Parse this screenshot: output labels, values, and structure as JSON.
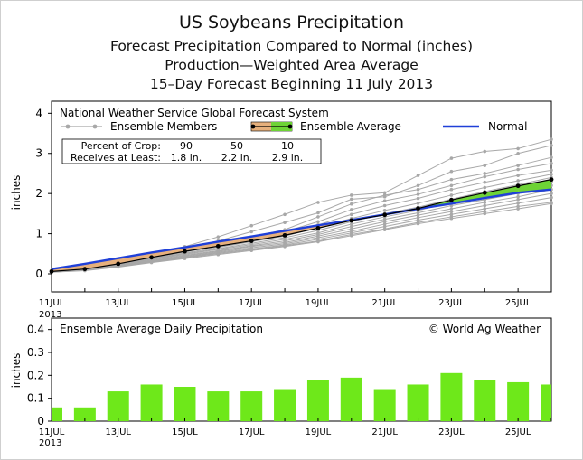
{
  "titles": [
    "US Soybeans Precipitation",
    "Forecast Precipitation Compared to Normal (inches)",
    "Production—Weighted Area Average",
    "15–Day Forecast Beginning 11 July 2013"
  ],
  "colors": {
    "normal": "#2040d8",
    "ensemble_avg_line": "#000000",
    "above_normal_fill": "#6ed336",
    "below_normal_fill": "#e6b07c",
    "members": "#a8a8a8",
    "bars": "#6ee81a"
  },
  "chart_data": [
    {
      "type": "line",
      "title": "National Weather Service Global Forecast System",
      "ylabel": "inches",
      "xlabel": "",
      "ylim": [
        -0.45,
        4.3
      ],
      "xlim": [
        "2013-07-11",
        "2013-07-26"
      ],
      "yticks": [
        0,
        1,
        2,
        3,
        4
      ],
      "xtick_labels": [
        "11JUL",
        "13JUL",
        "15JUL",
        "17JUL",
        "19JUL",
        "21JUL",
        "23JUL",
        "25JUL"
      ],
      "xtick_year_label": "2013",
      "x": [
        "2013-07-11",
        "2013-07-12",
        "2013-07-13",
        "2013-07-14",
        "2013-07-15",
        "2013-07-16",
        "2013-07-17",
        "2013-07-18",
        "2013-07-19",
        "2013-07-20",
        "2013-07-21",
        "2013-07-22",
        "2013-07-23",
        "2013-07-24",
        "2013-07-25",
        "2013-07-26"
      ],
      "legend": {
        "members_label": "Ensemble Members",
        "average_label": "Ensemble Average",
        "normal_label": "Normal"
      },
      "series": [
        {
          "name": "Ensemble Average",
          "values": [
            0.06,
            0.12,
            0.25,
            0.41,
            0.56,
            0.69,
            0.82,
            0.96,
            1.14,
            1.33,
            1.47,
            1.63,
            1.84,
            2.02,
            2.19,
            2.35
          ]
        },
        {
          "name": "Normal",
          "values": [
            0.12,
            0.25,
            0.39,
            0.53,
            0.66,
            0.8,
            0.93,
            1.07,
            1.21,
            1.34,
            1.48,
            1.62,
            1.75,
            1.89,
            2.02,
            2.1
          ]
        }
      ],
      "members": [
        [
          0.06,
          0.12,
          0.27,
          0.47,
          0.68,
          0.92,
          1.2,
          1.48,
          1.78,
          1.96,
          2.02,
          2.45,
          2.88,
          3.05,
          3.12,
          3.35
        ],
        [
          0.06,
          0.12,
          0.26,
          0.44,
          0.62,
          0.82,
          1.05,
          1.28,
          1.52,
          1.86,
          1.92,
          2.2,
          2.55,
          2.7,
          3.0,
          3.2
        ],
        [
          0.06,
          0.11,
          0.24,
          0.4,
          0.58,
          0.75,
          0.92,
          1.1,
          1.42,
          1.74,
          1.96,
          2.1,
          2.35,
          2.5,
          2.7,
          2.9
        ],
        [
          0.06,
          0.12,
          0.25,
          0.42,
          0.6,
          0.76,
          0.88,
          1.05,
          1.3,
          1.6,
          1.82,
          1.98,
          2.2,
          2.42,
          2.6,
          2.75
        ],
        [
          0.06,
          0.12,
          0.24,
          0.38,
          0.55,
          0.7,
          0.84,
          0.99,
          1.22,
          1.48,
          1.7,
          1.88,
          2.1,
          2.28,
          2.45,
          2.58
        ],
        [
          0.05,
          0.11,
          0.23,
          0.37,
          0.52,
          0.66,
          0.8,
          0.94,
          1.15,
          1.38,
          1.58,
          1.76,
          1.96,
          2.15,
          2.32,
          2.48
        ],
        [
          0.06,
          0.11,
          0.22,
          0.36,
          0.5,
          0.63,
          0.76,
          0.9,
          1.08,
          1.3,
          1.5,
          1.66,
          1.86,
          2.05,
          2.22,
          2.4
        ],
        [
          0.05,
          0.1,
          0.21,
          0.35,
          0.48,
          0.61,
          0.73,
          0.86,
          1.02,
          1.24,
          1.42,
          1.58,
          1.78,
          1.95,
          2.1,
          2.3
        ],
        [
          0.05,
          0.1,
          0.21,
          0.33,
          0.46,
          0.58,
          0.7,
          0.82,
          0.98,
          1.18,
          1.36,
          1.52,
          1.7,
          1.85,
          2.0,
          2.2
        ],
        [
          0.05,
          0.1,
          0.2,
          0.32,
          0.44,
          0.56,
          0.68,
          0.78,
          0.94,
          1.12,
          1.3,
          1.46,
          1.62,
          1.78,
          1.92,
          2.1
        ],
        [
          0.05,
          0.09,
          0.19,
          0.31,
          0.42,
          0.54,
          0.65,
          0.75,
          0.9,
          1.06,
          1.24,
          1.4,
          1.55,
          1.7,
          1.85,
          2.0
        ],
        [
          0.05,
          0.09,
          0.18,
          0.3,
          0.41,
          0.52,
          0.62,
          0.72,
          0.86,
          1.02,
          1.18,
          1.34,
          1.48,
          1.62,
          1.76,
          1.9
        ],
        [
          0.04,
          0.09,
          0.18,
          0.29,
          0.4,
          0.5,
          0.6,
          0.7,
          0.82,
          0.98,
          1.12,
          1.28,
          1.42,
          1.55,
          1.68,
          1.78
        ],
        [
          0.04,
          0.08,
          0.17,
          0.28,
          0.38,
          0.48,
          0.58,
          0.68,
          0.8,
          0.95,
          1.1,
          1.25,
          1.38,
          1.5,
          1.62,
          1.75
        ]
      ],
      "percent_table": {
        "row1_label": "Percent of Crop:",
        "row2_label": "Receives at Least:",
        "row1_values": [
          "90",
          "50",
          "10"
        ],
        "row2_values": [
          "1.8 in.",
          "2.2 in.",
          "2.9 in."
        ]
      }
    },
    {
      "type": "bar",
      "title": "Ensemble Average Daily Precipitation",
      "credit": "© World Ag Weather",
      "ylabel": "inches",
      "ylim": [
        0,
        0.45
      ],
      "yticks": [
        "0",
        "0.1",
        "0.2",
        "0.3",
        "0.4"
      ],
      "xtick_labels": [
        "11JUL",
        "13JUL",
        "15JUL",
        "17JUL",
        "19JUL",
        "21JUL",
        "23JUL",
        "25JUL"
      ],
      "xtick_year_label": "2013",
      "x": [
        "2013-07-11",
        "2013-07-12",
        "2013-07-13",
        "2013-07-14",
        "2013-07-15",
        "2013-07-16",
        "2013-07-17",
        "2013-07-18",
        "2013-07-19",
        "2013-07-20",
        "2013-07-21",
        "2013-07-22",
        "2013-07-23",
        "2013-07-24",
        "2013-07-25",
        "2013-07-26"
      ],
      "values": [
        0.06,
        0.06,
        0.13,
        0.16,
        0.15,
        0.13,
        0.13,
        0.14,
        0.18,
        0.19,
        0.14,
        0.16,
        0.21,
        0.18,
        0.17,
        0.16
      ]
    }
  ]
}
